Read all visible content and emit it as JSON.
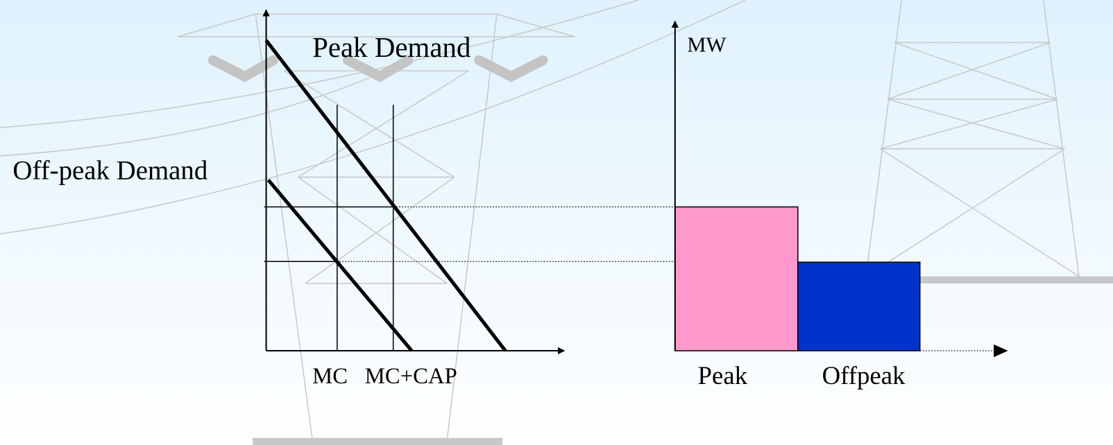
{
  "diagram": {
    "demand_labels": {
      "peak": "Peak Demand",
      "offpeak": "Off-peak Demand"
    },
    "price_labels": {
      "mc": "MC",
      "mc_cap": "MC+CAP"
    },
    "capacity_axis_label": "MW",
    "period_labels": {
      "peak": "Peak",
      "offpeak": "Offpeak"
    }
  }
}
